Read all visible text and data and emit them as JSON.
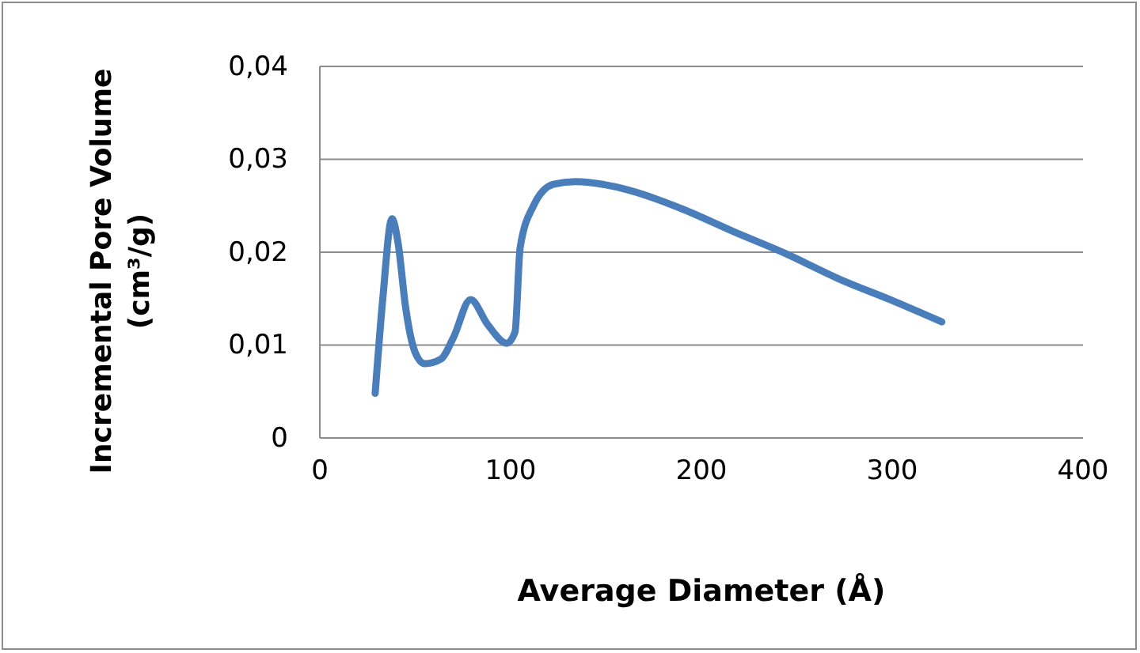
{
  "chart_data": {
    "type": "line",
    "xlabel": "Average Diameter (Å)",
    "ylabel": "Incremental Pore Volume (cm³/g)",
    "xlim": [
      0,
      400
    ],
    "xticks": [
      0,
      100,
      200,
      300,
      400
    ],
    "ylim": [
      0,
      0.04
    ],
    "yticks": [
      0,
      {
        "value": 0.01,
        "label": "0,01"
      },
      {
        "value": 0.02,
        "label": "0,02"
      },
      {
        "value": 0.03,
        "label": "0,03"
      },
      {
        "value": 0.04,
        "label": "0,04"
      }
    ],
    "grid": "y",
    "marker": "none",
    "line_style": "solid",
    "series": [
      {
        "color": "#4a7ebb",
        "x": [
          29,
          33,
          37.8,
          41,
          45,
          50,
          55,
          63.5,
          70,
          79,
          88,
          98,
          102.3,
          105,
          112,
          122.4,
          134,
          161.7,
          189.4,
          217,
          244.7,
          272.3,
          300,
          326
        ],
        "values": [
          0.0048,
          0.015,
          0.0236,
          0.021,
          0.014,
          0.0092,
          0.008,
          0.0085,
          0.0108,
          0.0149,
          0.0122,
          0.0102,
          0.0114,
          0.0205,
          0.025,
          0.0273,
          0.0276,
          0.0267,
          0.0247,
          0.0222,
          0.0198,
          0.0171,
          0.0148,
          0.0125
        ]
      }
    ]
  }
}
